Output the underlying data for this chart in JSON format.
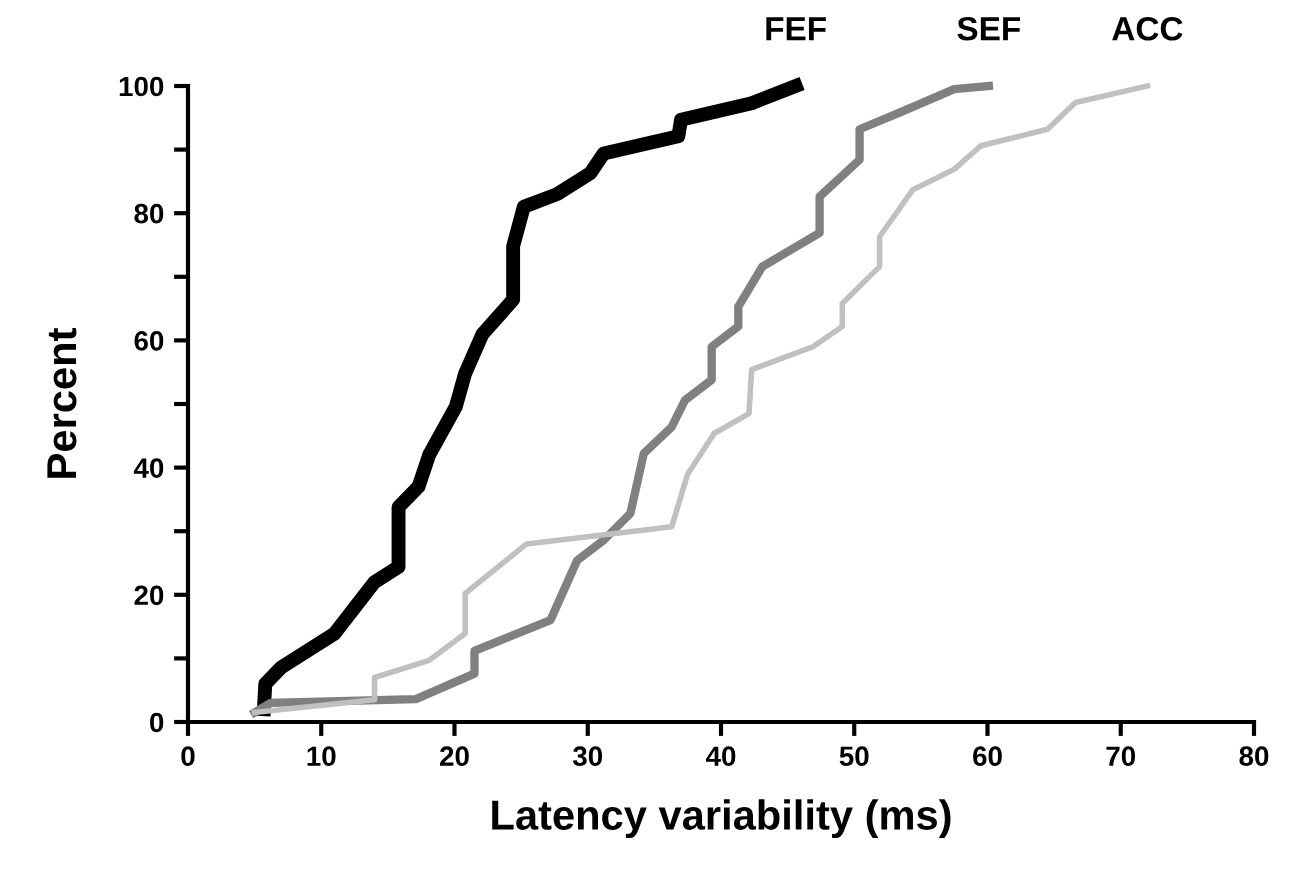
{
  "chart_data": {
    "type": "line",
    "xlabel": "Latency variability (ms)",
    "ylabel": "Percent",
    "xlim": [
      0,
      80
    ],
    "ylim": [
      0,
      100
    ],
    "xticks": [
      0,
      10,
      20,
      30,
      40,
      50,
      60,
      70,
      80
    ],
    "yticks": [
      0,
      {
        "value": 10,
        "label": null
      },
      20,
      {
        "value": 30,
        "label": null
      },
      40,
      {
        "value": 50,
        "label": null
      },
      60,
      {
        "value": 70,
        "label": null
      },
      80,
      {
        "value": 90,
        "label": null
      },
      100
    ],
    "grid": false,
    "legend": false,
    "marker": "none",
    "line_style": "solid",
    "series": [
      {
        "name": "FEF",
        "color": "#000000",
        "x": [
          5.7,
          5.8,
          7,
          11,
          14,
          15.8,
          15.8,
          17.3,
          18.1,
          20.1,
          20.8,
          22.1,
          24.4,
          24.4,
          25.2,
          27.7,
          30.2,
          31.2,
          36.8,
          37,
          42.3,
          45.6
        ],
        "values": [
          2,
          6,
          8.6,
          13.9,
          22,
          24.4,
          33.8,
          37,
          42,
          49.6,
          54.8,
          61,
          66.4,
          74.8,
          81,
          83,
          86.3,
          89.4,
          92.1,
          94.7,
          97.3,
          100
        ]
      },
      {
        "name": "SEF",
        "color": "#808080",
        "x": [
          5,
          6.2,
          17.1,
          21.5,
          21.5,
          27.2,
          29.2,
          31.2,
          33.2,
          34.2,
          36.3,
          37.3,
          39.3,
          39.3,
          41.3,
          41.3,
          43.1,
          47.4,
          47.4,
          50.4,
          50.4,
          53.4,
          57.5,
          60.1
        ],
        "values": [
          1.5,
          3,
          3.6,
          7.6,
          11.2,
          16,
          25.4,
          28.6,
          32.8,
          42.2,
          46.4,
          50.6,
          53.8,
          59,
          62.2,
          65.3,
          71.6,
          76.9,
          82.6,
          88.4,
          93.2,
          95.8,
          99.5,
          100
        ]
      },
      {
        "name": "ACC",
        "color": "#c0c0c0",
        "x": [
          5,
          14,
          14,
          18.1,
          20.8,
          20.8,
          25.4,
          36.3,
          37.5,
          39.5,
          42.1,
          42.3,
          46.9,
          49.1,
          49.1,
          51.9,
          51.9,
          54.4,
          57.5,
          59.5,
          64.5,
          66.6,
          72
        ],
        "values": [
          1.5,
          3.5,
          7,
          9.7,
          13.9,
          20.2,
          28,
          30.7,
          39,
          45.4,
          48.5,
          55.4,
          59,
          62.2,
          65.8,
          71.6,
          76.3,
          83.7,
          86.9,
          90.6,
          93.2,
          97.4,
          100
        ]
      }
    ]
  }
}
